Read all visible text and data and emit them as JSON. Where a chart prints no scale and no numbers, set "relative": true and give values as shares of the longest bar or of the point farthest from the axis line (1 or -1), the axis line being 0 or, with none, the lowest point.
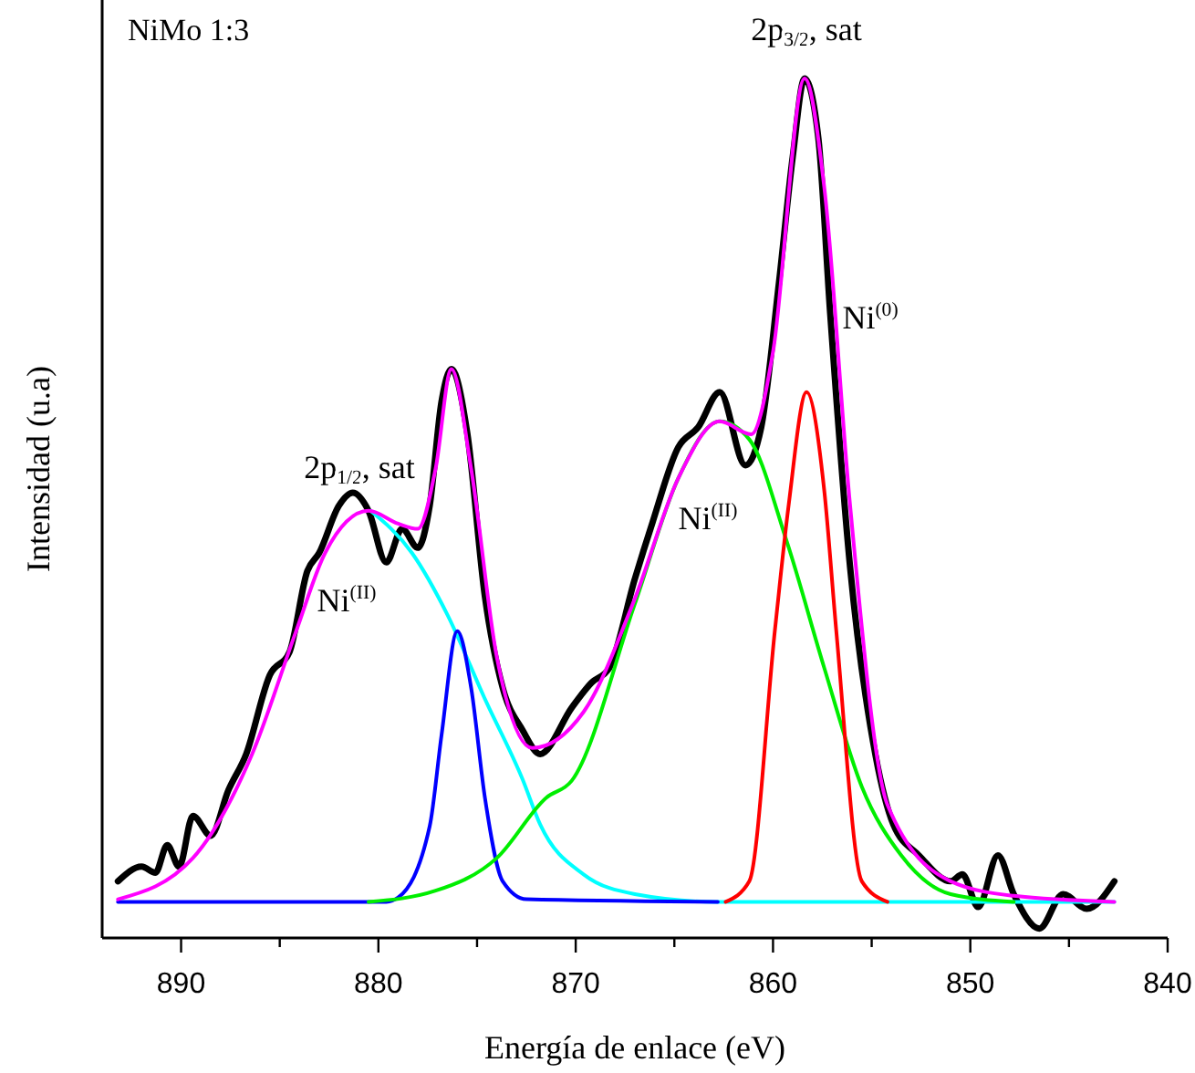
{
  "chart_data": {
    "type": "line",
    "title": "NiMo 1:3",
    "xlabel": "Energía de enlace (eV)",
    "ylabel": "Intensidad (u.a)",
    "relative": true,
    "xlim": [
      894,
      840
    ],
    "xticks": [
      890,
      {
        "value": 885,
        "label": null
      },
      880,
      {
        "value": 875,
        "label": null
      },
      870,
      {
        "value": 865,
        "label": null
      },
      860,
      {
        "value": 855,
        "label": null
      },
      850,
      {
        "value": 845,
        "label": null
      },
      840
    ],
    "grid": false,
    "marker": "none",
    "line_style": "solid",
    "annotations": [
      "2p$_{3/2}$, sat",
      "2p$_{1/2}$, sat",
      "Ni$^{(II)}$",
      "Ni$^{(II)}$",
      "Ni$^{(0)}$"
    ],
    "series": [
      {
        "color": "#000000",
        "x": [
          893.2,
          892.0,
          891.3,
          890.7,
          890.1,
          889.4,
          888.5,
          887.6,
          886.7,
          885.5,
          884.5,
          883.6,
          883.0,
          882.0,
          881.3,
          880.5,
          879.6,
          878.8,
          878.0,
          877.4,
          876.8,
          876.3,
          875.5,
          874.6,
          873.7,
          872.7,
          871.8,
          870.2,
          869.2,
          868.3,
          867.0,
          866.1,
          864.8,
          863.8,
          862.7,
          861.4,
          860.6,
          859.7,
          859.0,
          858.4,
          857.7,
          857.1,
          856.1,
          854.8,
          853.9,
          852.6,
          851.0,
          850.4,
          849.6,
          848.6,
          847.8,
          846.5,
          845.3,
          844.1,
          842.7
        ],
        "values": [
          0.066,
          0.083,
          0.076,
          0.108,
          0.083,
          0.142,
          0.119,
          0.172,
          0.214,
          0.306,
          0.333,
          0.427,
          0.448,
          0.503,
          0.518,
          0.497,
          0.437,
          0.476,
          0.454,
          0.503,
          0.624,
          0.662,
          0.588,
          0.397,
          0.291,
          0.242,
          0.214,
          0.268,
          0.297,
          0.314,
          0.418,
          0.484,
          0.571,
          0.594,
          0.635,
          0.55,
          0.594,
          0.762,
          0.909,
          1.0,
          0.93,
          0.726,
          0.433,
          0.212,
          0.132,
          0.096,
          0.066,
          0.074,
          0.036,
          0.096,
          0.051,
          0.011,
          0.051,
          0.034,
          0.066
        ]
      },
      {
        "color": "#00ffff",
        "x": [
          880.4,
          878.3,
          876.5,
          874.6,
          872.7,
          871.8,
          869.6,
          867.0,
          862.8,
          842.7
        ],
        "values": [
          0.497,
          0.448,
          0.376,
          0.278,
          0.185,
          0.132,
          0.074,
          0.051,
          0.042,
          0.042
        ]
      },
      {
        "color": "#0000ff",
        "x": [
          893.2,
          879.6,
          879.0,
          877.4,
          876.8,
          876.0,
          875.3,
          874.6,
          873.7,
          872.5,
          862.8
        ],
        "values": [
          0.042,
          0.042,
          0.047,
          0.13,
          0.236,
          0.357,
          0.291,
          0.163,
          0.066,
          0.045,
          0.042
        ]
      },
      {
        "color": "#00ee00",
        "x": [
          880.5,
          877.1,
          874.0,
          871.5,
          870.2,
          867.0,
          864.8,
          862.7,
          861.2,
          859.3,
          857.4,
          855.5,
          853.5,
          851.0,
          847.8
        ],
        "values": [
          0.042,
          0.055,
          0.093,
          0.163,
          0.183,
          0.389,
          0.535,
          0.601,
          0.58,
          0.461,
          0.314,
          0.176,
          0.096,
          0.051,
          0.042
        ]
      },
      {
        "color": "#ff0000",
        "x": [
          862.4,
          861.2,
          859.9,
          859.2,
          858.3,
          857.4,
          856.8,
          855.5,
          854.2
        ],
        "values": [
          0.042,
          0.066,
          0.359,
          0.505,
          0.635,
          0.52,
          0.359,
          0.066,
          0.042
        ]
      },
      {
        "color": "#ff00ff",
        "x": [
          893.2,
          889.4,
          886.4,
          884.2,
          882.7,
          880.5,
          879.0,
          878.0,
          877.1,
          876.3,
          875.3,
          874.0,
          872.2,
          869.6,
          867.0,
          864.8,
          862.7,
          861.1,
          860.0,
          858.4,
          857.4,
          856.1,
          854.2,
          851.0,
          847.8,
          842.7
        ],
        "values": [
          0.045,
          0.093,
          0.214,
          0.355,
          0.448,
          0.497,
          0.482,
          0.476,
          0.546,
          0.662,
          0.546,
          0.327,
          0.221,
          0.263,
          0.395,
          0.535,
          0.601,
          0.586,
          0.682,
          1.0,
          0.873,
          0.505,
          0.155,
          0.066,
          0.049,
          0.042
        ]
      }
    ]
  }
}
